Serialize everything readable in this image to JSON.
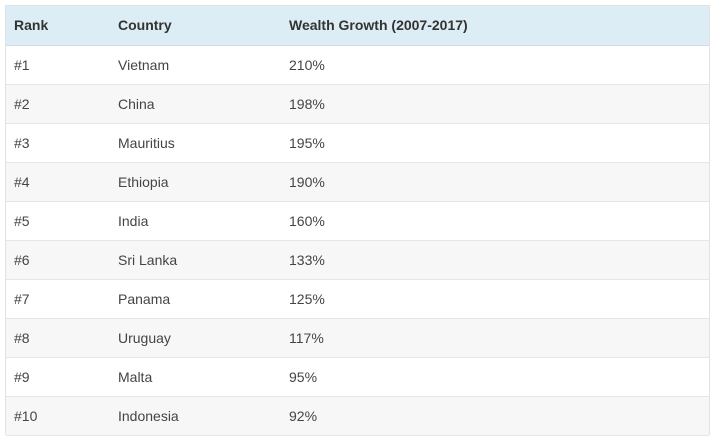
{
  "table": {
    "headers": {
      "rank": "Rank",
      "country": "Country",
      "growth": "Wealth Growth (2007-2017)"
    },
    "rows": [
      {
        "rank": "#1",
        "country": "Vietnam",
        "growth": "210%"
      },
      {
        "rank": "#2",
        "country": "China",
        "growth": "198%"
      },
      {
        "rank": "#3",
        "country": "Mauritius",
        "growth": "195%"
      },
      {
        "rank": "#4",
        "country": "Ethiopia",
        "growth": "190%"
      },
      {
        "rank": "#5",
        "country": "India",
        "growth": "160%"
      },
      {
        "rank": "#6",
        "country": "Sri Lanka",
        "growth": "133%"
      },
      {
        "rank": "#7",
        "country": "Panama",
        "growth": "125%"
      },
      {
        "rank": "#8",
        "country": "Uruguay",
        "growth": "117%"
      },
      {
        "rank": "#9",
        "country": "Malta",
        "growth": "95%"
      },
      {
        "rank": "#10",
        "country": "Indonesia",
        "growth": "92%"
      }
    ]
  },
  "colors": {
    "header_bg": "#dcedf5",
    "stripe_bg": "#f7f7f7",
    "text": "#444444"
  }
}
